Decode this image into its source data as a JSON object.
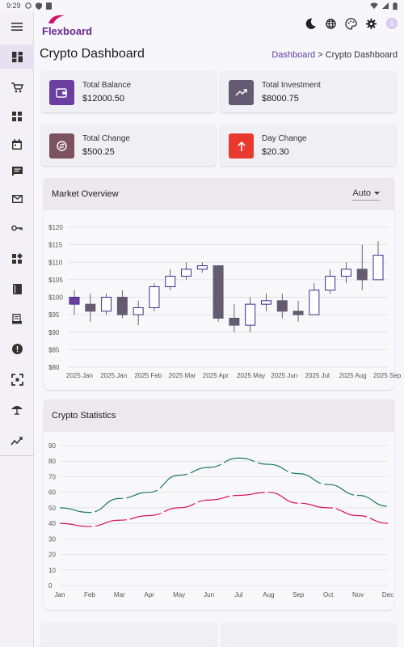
{
  "status_bar": {
    "time": "9:29"
  },
  "app": {
    "name": "Flexboard"
  },
  "sidebar": {
    "items": [
      {
        "icon": "menu-icon"
      },
      {
        "icon": "dashboard-icon",
        "active": true
      },
      {
        "icon": "cart-icon"
      },
      {
        "icon": "apps-grid-icon"
      },
      {
        "icon": "calendar-icon"
      },
      {
        "icon": "chat-icon"
      },
      {
        "icon": "mail-icon"
      },
      {
        "icon": "key-icon"
      },
      {
        "icon": "widgets-icon"
      },
      {
        "icon": "book-icon"
      },
      {
        "icon": "receipt-icon"
      },
      {
        "icon": "alert-icon"
      },
      {
        "icon": "focus-icon"
      },
      {
        "icon": "umbrella-icon"
      },
      {
        "icon": "analytics-icon"
      }
    ]
  },
  "header": {
    "icons": [
      "moon-icon",
      "globe-icon",
      "palette-icon",
      "gear-icon"
    ],
    "avatar": "S"
  },
  "page": {
    "title": "Crypto Dashboard",
    "breadcrumb": {
      "link": "Dashboard",
      "separator": ">",
      "current": "Crypto Dashboard"
    }
  },
  "stats": [
    {
      "label": "Total Balance",
      "value": "$12000.50",
      "color": "#6b3fa0",
      "icon": "wallet-icon"
    },
    {
      "label": "Total Investment",
      "value": "$8000.75",
      "color": "#625b71",
      "icon": "trending-up-icon"
    },
    {
      "label": "Total Change",
      "value": "$500.25",
      "color": "#7d5260",
      "icon": "exchange-icon"
    },
    {
      "label": "Day Change",
      "value": "$20.30",
      "color": "#e9392f",
      "icon": "arrow-up-icon"
    }
  ],
  "market": {
    "title": "Market Overview",
    "dropdown": "Auto"
  },
  "statistics": {
    "title": "Crypto Statistics"
  },
  "chart_data": [
    {
      "type": "candlestick",
      "title": "Market Overview",
      "ylim": [
        80,
        120
      ],
      "yticks": [
        "$80",
        "$85",
        "$90",
        "$95",
        "$100",
        "$105",
        "$110",
        "$115",
        "$120"
      ],
      "xticks": [
        "2025 Jan",
        "2025 Jan",
        "2025 Feb",
        "2025 Mar",
        "2025 Apr",
        "2025 May",
        "2025 Jun",
        "2025 Jul",
        "2025 Aug",
        "2025 Sep"
      ],
      "colors": {
        "bullish": "#3b2f8f",
        "bearish": "#625b71",
        "highlight": "#6b3fa0"
      },
      "candles": [
        {
          "o": 98,
          "h": 102,
          "l": 95,
          "c": 100
        },
        {
          "o": 98,
          "h": 101,
          "l": 93,
          "c": 96
        },
        {
          "o": 96,
          "h": 101,
          "l": 95,
          "c": 100
        },
        {
          "o": 100,
          "h": 102,
          "l": 94,
          "c": 95
        },
        {
          "o": 95,
          "h": 99,
          "l": 92,
          "c": 97
        },
        {
          "o": 97,
          "h": 104,
          "l": 96,
          "c": 103
        },
        {
          "o": 103,
          "h": 108,
          "l": 102,
          "c": 106
        },
        {
          "o": 106,
          "h": 110,
          "l": 105,
          "c": 108
        },
        {
          "o": 108,
          "h": 110,
          "l": 107,
          "c": 109
        },
        {
          "o": 109,
          "h": 109,
          "l": 93,
          "c": 94
        },
        {
          "o": 94,
          "h": 98,
          "l": 90,
          "c": 92
        },
        {
          "o": 92,
          "h": 100,
          "l": 90,
          "c": 98
        },
        {
          "o": 98,
          "h": 101,
          "l": 96,
          "c": 99
        },
        {
          "o": 99,
          "h": 101,
          "l": 94,
          "c": 96
        },
        {
          "o": 96,
          "h": 99,
          "l": 93,
          "c": 95
        },
        {
          "o": 95,
          "h": 104,
          "l": 95,
          "c": 102
        },
        {
          "o": 102,
          "h": 108,
          "l": 101,
          "c": 106
        },
        {
          "o": 106,
          "h": 110,
          "l": 104,
          "c": 108
        },
        {
          "o": 108,
          "h": 115,
          "l": 102,
          "c": 105
        },
        {
          "o": 105,
          "h": 116,
          "l": 105,
          "c": 112
        }
      ]
    },
    {
      "type": "line",
      "title": "Crypto Statistics",
      "ylim": [
        0,
        90
      ],
      "yticks": [
        0,
        10,
        20,
        30,
        40,
        50,
        60,
        70,
        80,
        90
      ],
      "categories": [
        "Jan",
        "Feb",
        "Mar",
        "Apr",
        "May",
        "Jun",
        "Jul",
        "Aug",
        "Sep",
        "Oct",
        "Nov",
        "Dec"
      ],
      "series": [
        {
          "color": "#1b7a5a",
          "values": [
            50,
            47,
            56,
            60,
            71,
            76,
            82,
            78,
            72,
            65,
            58,
            51
          ]
        },
        {
          "color": "#d4145a",
          "values": [
            40,
            38,
            42,
            45,
            50,
            55,
            58,
            60,
            53,
            50,
            45,
            40
          ]
        }
      ]
    }
  ]
}
